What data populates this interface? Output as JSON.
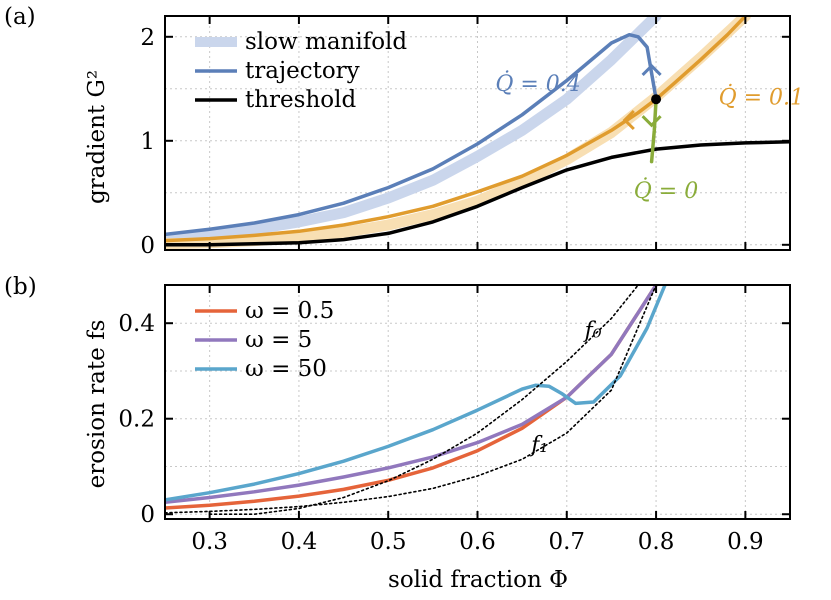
{
  "chart_data": [
    {
      "panel_label": "(a)",
      "type": "line",
      "ylabel": "gradient G²",
      "xlim": [
        0.25,
        0.95
      ],
      "ylim": [
        -0.05,
        2.2
      ],
      "yticks": [
        0,
        1,
        2
      ],
      "ytick_labels": [
        "0",
        "1",
        "2"
      ],
      "grid": true,
      "legend_position": "top-left",
      "series": [
        {
          "name": "slow manifold",
          "role": "manifold",
          "color": "#cad6ec",
          "x": [
            0.25,
            0.3,
            0.35,
            0.4,
            0.45,
            0.5,
            0.55,
            0.6,
            0.65,
            0.7,
            0.75,
            0.8
          ],
          "y": [
            0.06,
            0.1,
            0.15,
            0.22,
            0.31,
            0.45,
            0.62,
            0.85,
            1.1,
            1.4,
            1.78,
            2.2
          ]
        },
        {
          "name": "",
          "role": "manifold",
          "color": "#f8dfb3",
          "x": [
            0.25,
            0.3,
            0.35,
            0.4,
            0.45,
            0.5,
            0.55,
            0.6,
            0.65,
            0.7,
            0.75,
            0.8,
            0.85,
            0.9
          ],
          "y": [
            0.01,
            0.02,
            0.04,
            0.07,
            0.12,
            0.19,
            0.29,
            0.42,
            0.6,
            0.82,
            1.08,
            1.42,
            1.8,
            2.2
          ]
        },
        {
          "name": "trajectory",
          "role": "trajectory",
          "color": "#5b7fb8",
          "x": [
            0.25,
            0.3,
            0.35,
            0.4,
            0.45,
            0.5,
            0.55,
            0.6,
            0.65,
            0.7,
            0.75,
            0.77,
            0.78,
            0.79,
            0.8
          ],
          "y": [
            0.1,
            0.15,
            0.21,
            0.29,
            0.4,
            0.55,
            0.73,
            0.97,
            1.25,
            1.58,
            1.94,
            2.02,
            2.0,
            1.9,
            1.4
          ]
        },
        {
          "name": "",
          "role": "trajectory",
          "color": "#e09c2e",
          "x": [
            0.25,
            0.3,
            0.35,
            0.4,
            0.45,
            0.5,
            0.55,
            0.6,
            0.65,
            0.7,
            0.75,
            0.78,
            0.8,
            0.82,
            0.85,
            0.88,
            0.9
          ],
          "y": [
            0.04,
            0.06,
            0.09,
            0.13,
            0.19,
            0.27,
            0.37,
            0.51,
            0.66,
            0.86,
            1.1,
            1.27,
            1.4,
            1.55,
            1.78,
            2.02,
            2.2
          ]
        },
        {
          "name": "threshold",
          "role": "threshold",
          "color": "#000000",
          "x": [
            0.25,
            0.3,
            0.35,
            0.4,
            0.45,
            0.5,
            0.55,
            0.6,
            0.65,
            0.7,
            0.75,
            0.8,
            0.85,
            0.9,
            0.95
          ],
          "y": [
            0.0,
            0.0,
            0.01,
            0.02,
            0.05,
            0.11,
            0.22,
            0.37,
            0.55,
            0.72,
            0.84,
            0.92,
            0.96,
            0.98,
            0.99
          ]
        },
        {
          "name": "",
          "role": "trajectory",
          "color": "#8aac3a",
          "x": [
            0.8,
            0.798,
            0.795
          ],
          "y": [
            1.4,
            1.1,
            0.8
          ]
        }
      ],
      "annotations": [
        {
          "text": "Q̇ = 0.4",
          "color": "#5b7fb8",
          "x": 0.62,
          "y": 1.48
        },
        {
          "text": "Q̇ = 0.1",
          "color": "#e09c2e",
          "x": 0.87,
          "y": 1.35
        },
        {
          "text": "Q̇ = 0",
          "color": "#8aac3a",
          "x": 0.775,
          "y": 0.45
        }
      ],
      "marker": {
        "x": 0.8,
        "y": 1.4,
        "color": "#000000"
      }
    },
    {
      "panel_label": "(b)",
      "type": "line",
      "xlabel": "solid fraction Φ",
      "ylabel": "erosion rate fs",
      "xlim": [
        0.25,
        0.95
      ],
      "ylim": [
        -0.01,
        0.48
      ],
      "xticks": [
        0.3,
        0.4,
        0.5,
        0.6,
        0.7,
        0.8,
        0.9
      ],
      "xtick_labels": [
        "0.3",
        "0.4",
        "0.5",
        "0.6",
        "0.7",
        "0.8",
        "0.9"
      ],
      "yticks": [
        0,
        0.2,
        0.4
      ],
      "ytick_labels": [
        "0",
        "0.2",
        "0.4"
      ],
      "grid": true,
      "legend_position": "top-left",
      "series": [
        {
          "name": "ω = 0.5",
          "color": "#e5643a",
          "x": [
            0.25,
            0.3,
            0.35,
            0.4,
            0.45,
            0.5,
            0.55,
            0.6,
            0.65,
            0.7,
            0.75,
            0.8
          ],
          "y": [
            0.013,
            0.019,
            0.027,
            0.038,
            0.052,
            0.071,
            0.097,
            0.133,
            0.18,
            0.245,
            0.335,
            0.48
          ]
        },
        {
          "name": "ω = 5",
          "color": "#9178bd",
          "x": [
            0.25,
            0.3,
            0.35,
            0.4,
            0.45,
            0.5,
            0.55,
            0.6,
            0.65,
            0.7,
            0.75,
            0.8
          ],
          "y": [
            0.025,
            0.035,
            0.047,
            0.061,
            0.078,
            0.097,
            0.12,
            0.15,
            0.188,
            0.245,
            0.335,
            0.48
          ]
        },
        {
          "name": "ω = 50",
          "color": "#5aa6cc",
          "x": [
            0.25,
            0.3,
            0.35,
            0.4,
            0.45,
            0.5,
            0.55,
            0.6,
            0.65,
            0.665,
            0.68,
            0.695,
            0.71,
            0.73,
            0.76,
            0.79,
            0.81
          ],
          "y": [
            0.03,
            0.045,
            0.063,
            0.085,
            0.111,
            0.142,
            0.177,
            0.218,
            0.262,
            0.27,
            0.268,
            0.252,
            0.232,
            0.235,
            0.29,
            0.39,
            0.48
          ]
        },
        {
          "name": "f₀",
          "color": "#000000",
          "dashed": true,
          "x": [
            0.3,
            0.35,
            0.4,
            0.45,
            0.5,
            0.55,
            0.6,
            0.65,
            0.7,
            0.75,
            0.78
          ],
          "y": [
            0.0,
            0.0,
            0.012,
            0.035,
            0.07,
            0.115,
            0.17,
            0.24,
            0.32,
            0.41,
            0.48
          ]
        },
        {
          "name": "f₁",
          "color": "#000000",
          "dashed": true,
          "x": [
            0.25,
            0.3,
            0.35,
            0.4,
            0.45,
            0.5,
            0.55,
            0.6,
            0.65,
            0.7,
            0.75,
            0.8
          ],
          "y": [
            0.003,
            0.006,
            0.01,
            0.016,
            0.025,
            0.037,
            0.054,
            0.08,
            0.115,
            0.17,
            0.26,
            0.48
          ]
        }
      ],
      "annotations": [
        {
          "text": "f₀",
          "x": 0.72,
          "y": 0.37
        },
        {
          "text": "f₁",
          "x": 0.66,
          "y": 0.13
        }
      ]
    }
  ]
}
